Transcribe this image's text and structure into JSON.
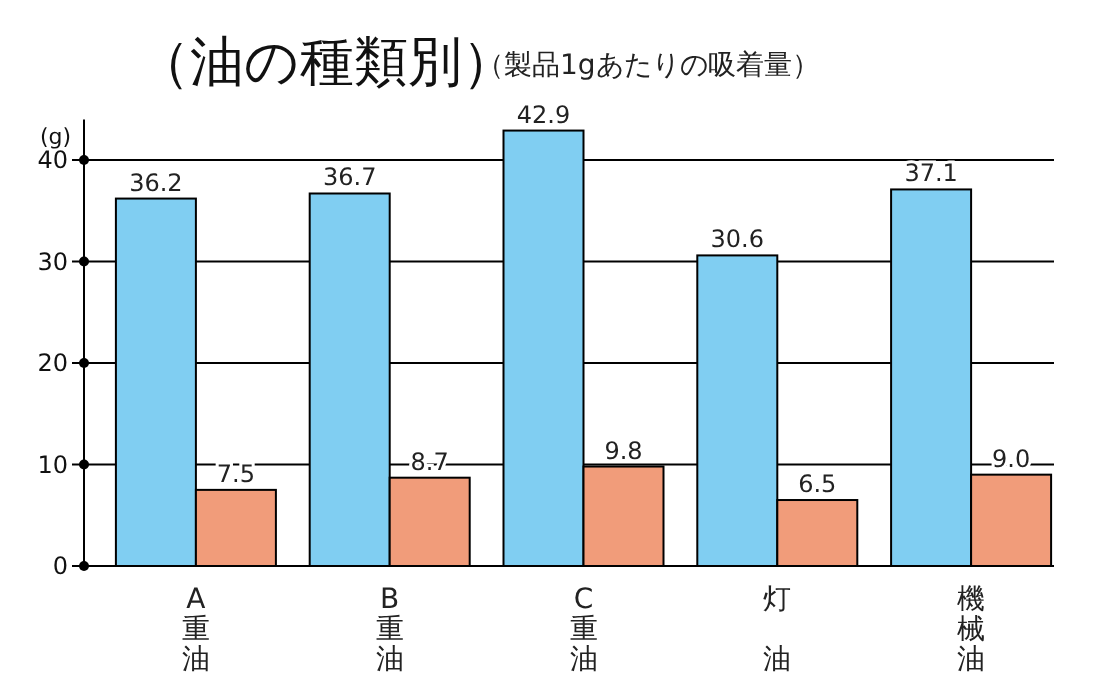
{
  "chart_data": {
    "type": "bar",
    "title": "（油の種類別）",
    "subtitle": "（製品1gあたりの吸着量）",
    "ylabel": "(g)",
    "categories": [
      "A重油",
      "B重油",
      "C重油",
      "灯油",
      "機械油"
    ],
    "series": [
      {
        "color": "#80cef2",
        "values": [
          36.2,
          36.7,
          42.9,
          30.6,
          37.1
        ],
        "value_labels": [
          "36.2",
          "36.7",
          "42.9",
          "30.6",
          "37.1"
        ]
      },
      {
        "color": "#f19c7a",
        "values": [
          7.5,
          8.7,
          9.8,
          6.5,
          9.0
        ],
        "value_labels": [
          "7.5",
          "8.7",
          "9.8",
          "6.5",
          "9.0"
        ]
      }
    ],
    "ylim": [
      0,
      44
    ],
    "yticks": [
      0,
      10,
      20,
      30,
      40
    ],
    "grid": "y"
  }
}
